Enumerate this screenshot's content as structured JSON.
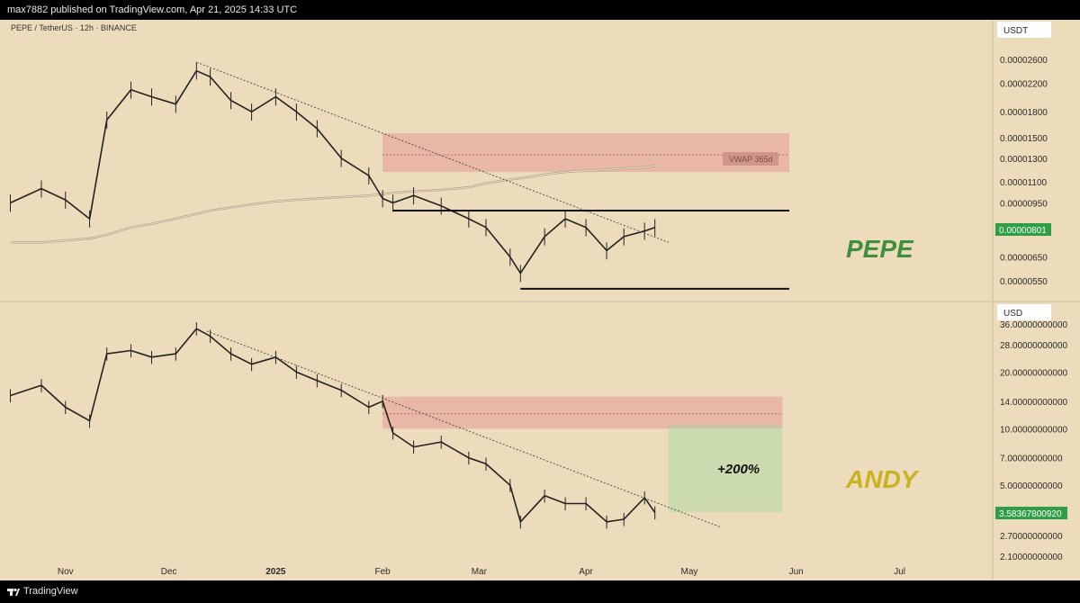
{
  "header": {
    "publish_text": "max7882 published on TradingView.com, Apr 21, 2025 14:33 UTC"
  },
  "footer": {
    "brand": "TradingView"
  },
  "pane_top": {
    "symbol": "PEPE / TetherUS · 12h · BINANCE",
    "currency": "USDT",
    "asset_label": "PEPE",
    "asset_color": "#3f8f3c",
    "vwap_label": "VWAP 365d",
    "price_tag": "0.00000801",
    "price_tag_color": "#2f9e44",
    "y_ticks": [
      "0.00002600",
      "0.00002200",
      "0.00001800",
      "0.00001500",
      "0.00001300",
      "0.00001100",
      "0.00000950",
      "0.00000650",
      "0.00000550"
    ]
  },
  "pane_bottom": {
    "currency": "USD",
    "asset_label": "ANDY",
    "asset_color": "#c9b21f",
    "target_label": "+200%",
    "price_tag": "3.58367800920",
    "price_tag_color": "#2f9e44",
    "y_ticks": [
      "36.00000000000",
      "28.00000000000",
      "20.00000000000",
      "14.00000000000",
      "10.00000000000",
      "7.00000000000",
      "5.00000000000",
      "2.70000000000",
      "2.10000000000"
    ]
  },
  "x_axis": [
    "Nov",
    "Dec",
    "2025",
    "Feb",
    "Mar",
    "Apr",
    "May",
    "Jun",
    "Jul"
  ],
  "chart_data": [
    {
      "type": "line",
      "title": "PEPE / TetherUS · 12h · BINANCE",
      "y_scale": "log",
      "ylabel": "USDT",
      "x": [
        "2024-10-16",
        "2024-10-25",
        "2024-11-01",
        "2024-11-08",
        "2024-11-13",
        "2024-11-20",
        "2024-11-26",
        "2024-12-03",
        "2024-12-09",
        "2024-12-13",
        "2024-12-19",
        "2024-12-25",
        "2025-01-01",
        "2025-01-07",
        "2025-01-13",
        "2025-01-20",
        "2025-01-28",
        "2025-02-01",
        "2025-02-04",
        "2025-02-10",
        "2025-02-18",
        "2025-02-26",
        "2025-03-03",
        "2025-03-10",
        "2025-03-13",
        "2025-03-20",
        "2025-03-26",
        "2025-04-01",
        "2025-04-07",
        "2025-04-12",
        "2025-04-18",
        "2025-04-21"
      ],
      "series": [
        {
          "values": [
            9.5e-06,
            1.05e-05,
            9.7e-06,
            8.5e-06,
            1.7e-05,
            2.1e-05,
            2e-05,
            1.9e-05,
            2.4e-05,
            2.3e-05,
            1.95e-05,
            1.8e-05,
            2e-05,
            1.8e-05,
            1.6e-05,
            1.3e-05,
            1.15e-05,
            9.8e-06,
            9.5e-06,
            1e-05,
            9.3e-06,
            8.5e-06,
            8e-06,
            6.5e-06,
            5.8e-06,
            7.5e-06,
            8.5e-06,
            8e-06,
            6.8e-06,
            7.5e-06,
            7.8e-06,
            8e-06
          ]
        },
        {
          "name": "VWAP 365d",
          "values": [
            7.2e-06,
            7.2e-06,
            7.3e-06,
            7.4e-06,
            7.6e-06,
            8e-06,
            8.2e-06,
            8.5e-06,
            8.8e-06,
            9e-06,
            9.2e-06,
            9.4e-06,
            9.6e-06,
            9.7e-06,
            9.8e-06,
            9.9e-06,
            1e-05,
            1.01e-05,
            1.02e-05,
            1.03e-05,
            1.04e-05,
            1.06e-05,
            1.09e-05,
            1.12e-05,
            1.13e-05,
            1.16e-05,
            1.18e-05,
            1.19e-05,
            1.2e-05,
            1.21e-05,
            1.22e-05,
            1.23e-05
          ]
        }
      ],
      "annotations": {
        "resistance_zone": [
          1.18e-05,
          1.55e-05
        ],
        "range_high": 9e-06,
        "range_low": 5.2e-06,
        "downtrend_line": [
          {
            "x": "2024-12-09",
            "y": 2.55e-05
          },
          {
            "x": "2025-04-25",
            "y": 7.2e-06
          }
        ],
        "last_price": 8.01e-06
      }
    },
    {
      "type": "line",
      "title": "",
      "y_scale": "log",
      "ylabel": "USD",
      "x": [
        "2024-10-16",
        "2024-10-25",
        "2024-11-01",
        "2024-11-08",
        "2024-11-13",
        "2024-11-20",
        "2024-11-26",
        "2024-12-03",
        "2024-12-09",
        "2024-12-13",
        "2024-12-19",
        "2024-12-25",
        "2025-01-01",
        "2025-01-07",
        "2025-01-13",
        "2025-01-20",
        "2025-01-28",
        "2025-02-01",
        "2025-02-04",
        "2025-02-10",
        "2025-02-18",
        "2025-02-26",
        "2025-03-03",
        "2025-03-10",
        "2025-03-13",
        "2025-03-20",
        "2025-03-26",
        "2025-04-01",
        "2025-04-07",
        "2025-04-12",
        "2025-04-18",
        "2025-04-21"
      ],
      "series": [
        {
          "values": [
            15,
            17,
            13,
            11,
            25,
            26,
            24,
            25,
            34,
            31,
            25,
            22,
            24,
            20,
            18,
            16,
            13,
            14,
            9.5,
            8.0,
            8.5,
            7.0,
            6.5,
            5.0,
            3.2,
            4.4,
            4.0,
            4.0,
            3.2,
            3.3,
            4.3,
            3.58
          ]
        }
      ],
      "annotations": {
        "resistance_zone": [
          10,
          14.8
        ],
        "downtrend_line": [
          {
            "x": "2024-12-12",
            "y": 33
          },
          {
            "x": "2025-05-10",
            "y": 3.0
          }
        ],
        "target_zone": [
          3.6,
          10.5
        ],
        "last_price": 3.5836780092
      }
    }
  ]
}
